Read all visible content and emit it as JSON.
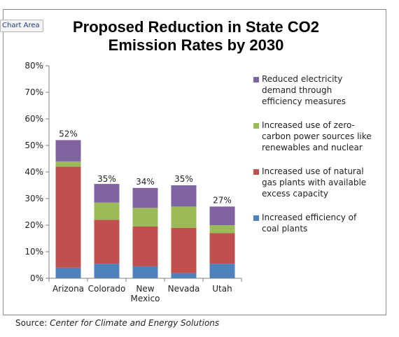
{
  "tooltip": "Chart Area",
  "chart_data": {
    "type": "bar",
    "stacked": true,
    "title": "Proposed Reduction in State CO2 Emission Rates by 2030",
    "title_lines": [
      "Proposed Reduction in State CO2",
      "Emission Rates by 2030"
    ],
    "categories": [
      "Arizona",
      "Colorado",
      "New Mexico",
      "Nevada",
      "Utah"
    ],
    "category_lines": [
      [
        "Arizona"
      ],
      [
        "Colorado"
      ],
      [
        "New",
        "Mexico"
      ],
      [
        "Nevada"
      ],
      [
        "Utah"
      ]
    ],
    "series": [
      {
        "name": "Increased efficiency of coal plants",
        "color": "#4f81bd",
        "values": [
          4,
          5.5,
          4.5,
          2,
          5.5
        ]
      },
      {
        "name": "Increased use of natural gas plants with available excess capacity",
        "color": "#c0504d",
        "values": [
          38,
          16.5,
          15,
          17,
          11.5
        ]
      },
      {
        "name": "Increased use of zero-carbon power sources like renewables and nuclear",
        "color": "#9bbb59",
        "values": [
          2,
          6.5,
          7,
          8,
          3
        ]
      },
      {
        "name": "Reduced electricity demand through efficiency measures",
        "color": "#8064a2",
        "values": [
          8,
          7,
          7.5,
          8,
          7
        ]
      }
    ],
    "totals": [
      52,
      35,
      34,
      35,
      27
    ],
    "total_labels": [
      "52%",
      "35%",
      "34%",
      "35%",
      "27%"
    ],
    "ylim": [
      0,
      80
    ],
    "yticks": [
      "0%",
      "10%",
      "20%",
      "30%",
      "40%",
      "50%",
      "60%",
      "70%",
      "80%"
    ],
    "grid": false,
    "legend_position": "right",
    "legend": [
      {
        "lines": [
          "Reduced electricity",
          "demand through",
          "efficiency measures"
        ],
        "color": "#8064a2"
      },
      {
        "lines": [
          "Increased use of zero-",
          "carbon power sources like",
          "renewables and nuclear"
        ],
        "color": "#9bbb59"
      },
      {
        "lines": [
          "Increased use of natural",
          "gas plants with available",
          "excess capacity"
        ],
        "color": "#c0504d"
      },
      {
        "lines": [
          "Increased efficiency of",
          "coal plants"
        ],
        "color": "#4f81bd"
      }
    ]
  },
  "source": {
    "label": "Source:",
    "name": "Center for Climate and Energy Solutions"
  }
}
